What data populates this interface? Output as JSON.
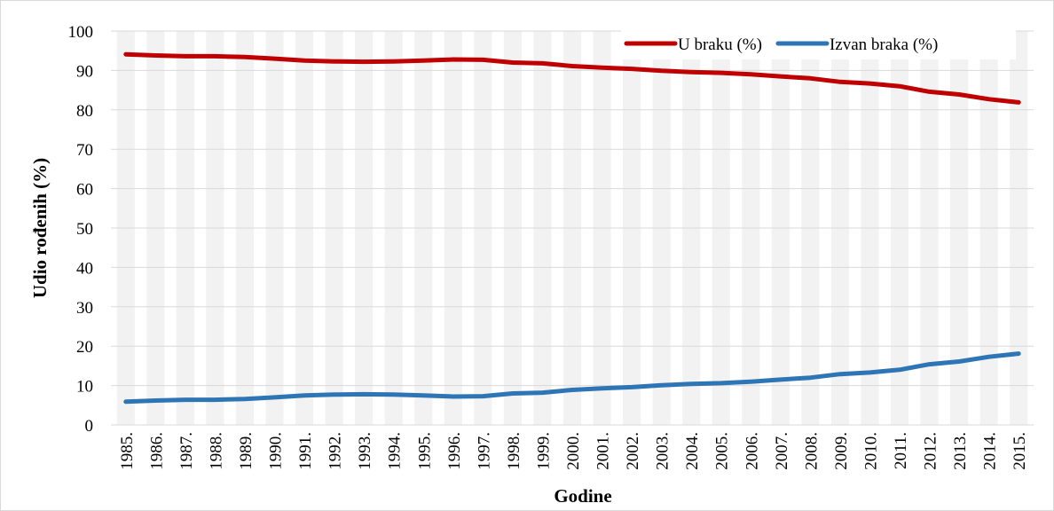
{
  "chart_data": {
    "type": "line",
    "x_label": "Godine",
    "y_label": "Udio rođenih (%)",
    "categories": [
      "1985.",
      "1986.",
      "1987.",
      "1988.",
      "1989.",
      "1990.",
      "1991.",
      "1992.",
      "1993.",
      "1994.",
      "1995.",
      "1996.",
      "1997.",
      "1998.",
      "1999.",
      "2000.",
      "2001.",
      "2002.",
      "2003.",
      "2004.",
      "2005.",
      "2006.",
      "2007.",
      "2008.",
      "2009.",
      "2010.",
      "2011.",
      "2012.",
      "2013.",
      "2014.",
      "2015."
    ],
    "series": [
      {
        "name": "U braku (%)",
        "color": "#c00000",
        "values": [
          94.1,
          93.8,
          93.6,
          93.6,
          93.4,
          93.0,
          92.5,
          92.3,
          92.2,
          92.3,
          92.5,
          92.8,
          92.7,
          92.0,
          91.8,
          91.1,
          90.7,
          90.4,
          89.9,
          89.6,
          89.4,
          89.0,
          88.5,
          88.0,
          87.1,
          86.7,
          86.0,
          84.6,
          83.9,
          82.7,
          81.9
        ]
      },
      {
        "name": "Izvan braka (%)",
        "color": "#2e75b6",
        "values": [
          5.9,
          6.2,
          6.4,
          6.4,
          6.6,
          7.0,
          7.5,
          7.7,
          7.8,
          7.7,
          7.5,
          7.2,
          7.3,
          8.0,
          8.2,
          8.9,
          9.3,
          9.6,
          10.1,
          10.4,
          10.6,
          11.0,
          11.5,
          12.0,
          12.9,
          13.3,
          14.0,
          15.4,
          16.1,
          17.3,
          18.1
        ]
      }
    ],
    "ylim": [
      0,
      100
    ],
    "yticks": [
      0,
      10,
      20,
      30,
      40,
      50,
      60,
      70,
      80,
      90,
      100
    ],
    "grid": true,
    "legend": "top-right"
  }
}
